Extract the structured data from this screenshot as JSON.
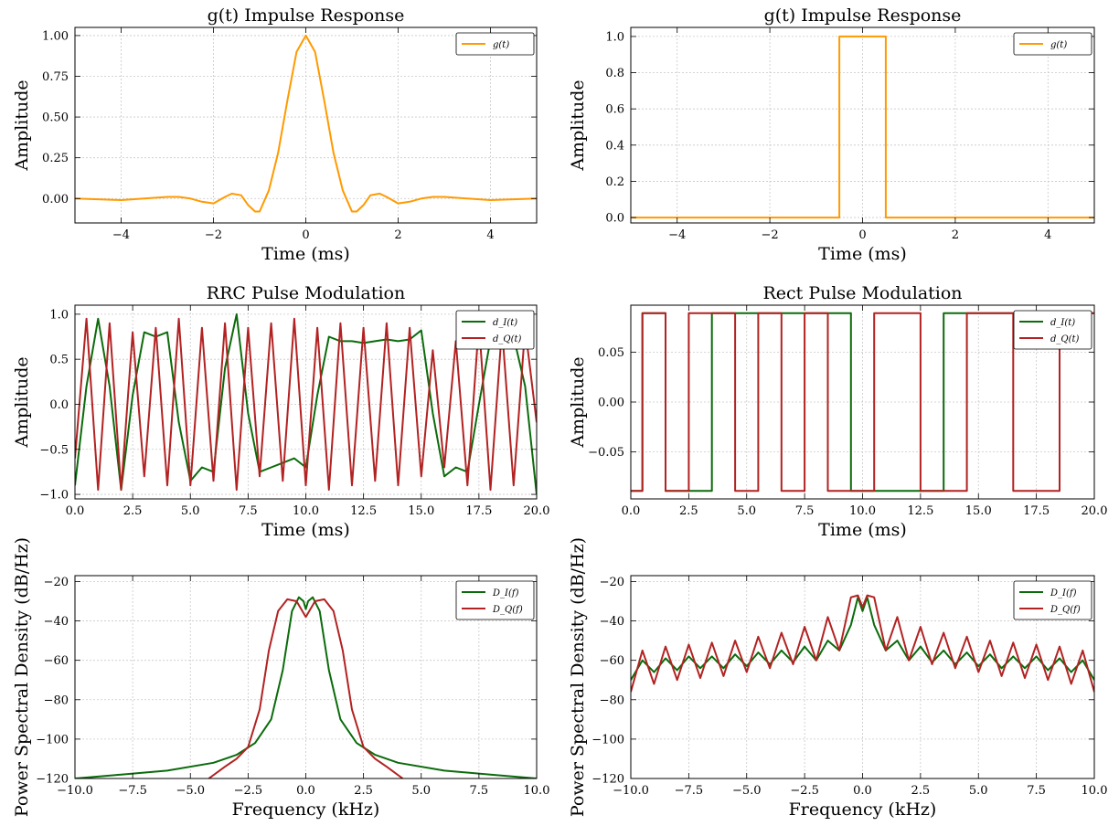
{
  "colors": {
    "orange": "#ff9a00",
    "green": "#0b6b0b",
    "red": "#b22222"
  },
  "chart_data": [
    {
      "type": "line",
      "title": "g(t) Impulse Response",
      "xlabel": "Time (ms)",
      "ylabel": "Amplitude",
      "xlim": [
        -5,
        5
      ],
      "ylim": [
        -0.15,
        1.05
      ],
      "xticks": [
        -4,
        -2,
        0,
        2,
        4
      ],
      "xticklabels": [
        "−4",
        "−2",
        "0",
        "2",
        "4"
      ],
      "yticks": [
        0,
        0.25,
        0.5,
        0.75,
        1.0
      ],
      "yticklabels": [
        "0.00",
        "0.25",
        "0.50",
        "0.75",
        "1.00"
      ],
      "grid": true,
      "legend": "top-right",
      "series": [
        {
          "name": "g(t)",
          "color": "#ff9a00",
          "x": [
            -5,
            -4.5,
            -4,
            -3.5,
            -3,
            -2.75,
            -2.5,
            -2.25,
            -2,
            -1.75,
            -1.6,
            -1.4,
            -1.25,
            -1.1,
            -1,
            -0.8,
            -0.6,
            -0.4,
            -0.2,
            0,
            0.2,
            0.4,
            0.6,
            0.8,
            1,
            1.1,
            1.25,
            1.4,
            1.6,
            1.75,
            2,
            2.25,
            2.5,
            2.75,
            3,
            3.5,
            4,
            4.5,
            5
          ],
          "y": [
            0.0,
            -0.005,
            -0.01,
            0.0,
            0.01,
            0.01,
            0.0,
            -0.02,
            -0.03,
            0.01,
            0.03,
            0.02,
            -0.04,
            -0.08,
            -0.08,
            0.05,
            0.28,
            0.6,
            0.9,
            1.0,
            0.9,
            0.6,
            0.28,
            0.05,
            -0.08,
            -0.08,
            -0.04,
            0.02,
            0.03,
            0.01,
            -0.03,
            -0.02,
            0.0,
            0.01,
            0.01,
            0.0,
            -0.01,
            -0.005,
            0.0
          ]
        }
      ]
    },
    {
      "type": "line",
      "title": "g(t) Impulse Response",
      "xlabel": "Time (ms)",
      "ylabel": "Amplitude",
      "xlim": [
        -5,
        5
      ],
      "ylim": [
        -0.03,
        1.05
      ],
      "xticks": [
        -4,
        -2,
        0,
        2,
        4
      ],
      "xticklabels": [
        "−4",
        "−2",
        "0",
        "2",
        "4"
      ],
      "yticks": [
        0,
        0.2,
        0.4,
        0.6,
        0.8,
        1.0
      ],
      "yticklabels": [
        "0.0",
        "0.2",
        "0.4",
        "0.6",
        "0.8",
        "1.0"
      ],
      "grid": true,
      "legend": "top-right",
      "series": [
        {
          "name": "g(t)",
          "color": "#ff9a00",
          "x": [
            -5,
            -0.5,
            -0.5,
            0.5,
            0.5,
            5
          ],
          "y": [
            0,
            0,
            1,
            1,
            0,
            0
          ]
        }
      ]
    },
    {
      "type": "line",
      "title": "RRC Pulse Modulation",
      "xlabel": "Time (ms)",
      "ylabel": "Amplitude",
      "xlim": [
        0,
        20
      ],
      "ylim": [
        -1.05,
        1.1
      ],
      "xticks": [
        0,
        2.5,
        5,
        7.5,
        10,
        12.5,
        15,
        17.5,
        20
      ],
      "xticklabels": [
        "0.0",
        "2.5",
        "5.0",
        "7.5",
        "10.0",
        "12.5",
        "15.0",
        "17.5",
        "20.0"
      ],
      "yticks": [
        -1,
        -0.5,
        0,
        0.5,
        1
      ],
      "yticklabels": [
        "−1.0",
        "−0.5",
        "0.0",
        "0.5",
        "1.0"
      ],
      "grid": true,
      "legend": "top-right",
      "series": [
        {
          "name": "d_I(t)",
          "color": "#0b6b0b",
          "x": [
            0,
            0.5,
            1,
            1.5,
            2,
            2.5,
            3,
            3.5,
            4,
            4.5,
            5,
            5.5,
            6,
            6.5,
            7,
            7.5,
            8,
            8.5,
            9,
            9.5,
            10,
            10.5,
            11,
            11.5,
            12,
            12.5,
            13,
            13.5,
            14,
            14.5,
            15,
            15.5,
            16,
            16.5,
            17,
            17.5,
            18,
            18.5,
            19,
            19.5,
            20
          ],
          "y": [
            -0.9,
            0.2,
            0.95,
            0.2,
            -0.95,
            0.1,
            0.8,
            0.75,
            0.8,
            -0.2,
            -0.85,
            -0.7,
            -0.75,
            0.4,
            1.0,
            -0.1,
            -0.75,
            -0.7,
            -0.65,
            -0.6,
            -0.7,
            0.1,
            0.75,
            0.7,
            0.7,
            0.68,
            0.7,
            0.72,
            0.7,
            0.72,
            0.82,
            -0.1,
            -0.8,
            -0.7,
            -0.75,
            0.0,
            0.72,
            0.7,
            0.75,
            0.2,
            -1.0
          ]
        },
        {
          "name": "d_Q(t)",
          "color": "#b22222",
          "x": [
            0,
            0.5,
            1,
            1.5,
            2,
            2.5,
            3,
            3.5,
            4,
            4.5,
            5,
            5.5,
            6,
            6.5,
            7,
            7.5,
            8,
            8.5,
            9,
            9.5,
            10,
            10.5,
            11,
            11.5,
            12,
            12.5,
            13,
            13.5,
            14,
            14.5,
            15,
            15.5,
            16,
            16.5,
            17,
            17.5,
            18,
            18.5,
            19,
            19.5,
            20
          ],
          "y": [
            -0.6,
            0.95,
            -0.95,
            0.9,
            -0.95,
            0.8,
            -0.8,
            0.85,
            -0.9,
            0.95,
            -0.9,
            0.85,
            -0.85,
            0.9,
            -0.95,
            0.85,
            -0.8,
            0.9,
            -0.85,
            0.95,
            -0.9,
            0.85,
            -0.95,
            0.9,
            -0.9,
            0.85,
            -0.85,
            0.9,
            -0.9,
            0.85,
            -0.8,
            0.6,
            -0.7,
            0.7,
            -0.9,
            0.9,
            -0.95,
            0.85,
            -0.9,
            0.85,
            -0.2
          ]
        }
      ]
    },
    {
      "type": "line",
      "title": "Rect Pulse Modulation",
      "xlabel": "Time (ms)",
      "ylabel": "Amplitude",
      "xlim": [
        0,
        20
      ],
      "ylim": [
        -0.097,
        0.097
      ],
      "xticks": [
        0,
        2.5,
        5,
        7.5,
        10,
        12.5,
        15,
        17.5,
        20
      ],
      "xticklabels": [
        "0.0",
        "2.5",
        "5.0",
        "7.5",
        "10.0",
        "12.5",
        "15.0",
        "17.5",
        "20.0"
      ],
      "yticks": [
        -0.05,
        0,
        0.05
      ],
      "yticklabels": [
        "−0.05",
        "0.00",
        "0.05"
      ],
      "grid": true,
      "legend": "top-right",
      "series": [
        {
          "name": "d_I(t)",
          "color": "#0b6b0b",
          "x": [
            0,
            0.5,
            0.5,
            1.5,
            1.5,
            3.5,
            3.5,
            9.5,
            9.5,
            13.5,
            13.5,
            20
          ],
          "y": [
            -0.089,
            -0.089,
            0.089,
            0.089,
            -0.089,
            -0.089,
            0.089,
            0.089,
            -0.089,
            -0.089,
            0.089,
            0.089
          ]
        },
        {
          "name": "d_Q(t)",
          "color": "#b22222",
          "x": [
            0,
            0.5,
            0.5,
            1.5,
            1.5,
            2.5,
            2.5,
            4.5,
            4.5,
            5.5,
            5.5,
            6.5,
            6.5,
            7.5,
            7.5,
            8.5,
            8.5,
            10.5,
            10.5,
            12.5,
            12.5,
            14.5,
            14.5,
            16.5,
            16.5,
            18.5,
            18.5,
            20
          ],
          "y": [
            -0.089,
            -0.089,
            0.089,
            0.089,
            -0.089,
            -0.089,
            0.089,
            0.089,
            -0.089,
            -0.089,
            0.089,
            0.089,
            -0.089,
            -0.089,
            0.089,
            0.089,
            -0.089,
            -0.089,
            0.089,
            0.089,
            -0.089,
            -0.089,
            0.089,
            0.089,
            -0.089,
            -0.089,
            0.089,
            0.089
          ]
        }
      ]
    },
    {
      "type": "line",
      "title": "",
      "xlabel": "Frequency (kHz)",
      "ylabel": "Power Spectral Density (dB/Hz)",
      "xlim": [
        -10,
        10
      ],
      "ylim": [
        -120,
        -17
      ],
      "xticks": [
        -10,
        -7.5,
        -5,
        -2.5,
        0,
        2.5,
        5,
        7.5,
        10
      ],
      "xticklabels": [
        "−10.0",
        "−7.5",
        "−5.0",
        "−2.5",
        "0.0",
        "2.5",
        "5.0",
        "7.5",
        "10.0"
      ],
      "yticks": [
        -120,
        -100,
        -80,
        -60,
        -40,
        -20
      ],
      "yticklabels": [
        "−120",
        "−100",
        "−80",
        "−60",
        "−40",
        "−20"
      ],
      "grid": true,
      "legend": "top-right",
      "series": [
        {
          "name": "D_I(f)",
          "color": "#0b6b0b",
          "x": [
            -10,
            -8,
            -6,
            -4,
            -3,
            -2.2,
            -1.5,
            -1,
            -0.6,
            -0.3,
            -0.1,
            0,
            0.1,
            0.3,
            0.6,
            1,
            1.5,
            2.2,
            3,
            4,
            6,
            8,
            10
          ],
          "y": [
            -120,
            -118,
            -116,
            -112,
            -108,
            -102,
            -90,
            -65,
            -35,
            -28,
            -30,
            -34,
            -30,
            -28,
            -35,
            -65,
            -90,
            -102,
            -108,
            -112,
            -116,
            -118,
            -120
          ]
        },
        {
          "name": "D_Q(f)",
          "color": "#b22222",
          "x": [
            -4.2,
            -3.5,
            -3,
            -2.5,
            -2,
            -1.6,
            -1.2,
            -0.8,
            -0.4,
            -0.15,
            0,
            0.15,
            0.4,
            0.8,
            1.2,
            1.6,
            2,
            2.5,
            3,
            3.5,
            4.2
          ],
          "y": [
            -120,
            -114,
            -110,
            -104,
            -85,
            -55,
            -35,
            -29,
            -30,
            -35,
            -38,
            -35,
            -30,
            -29,
            -35,
            -55,
            -85,
            -104,
            -110,
            -114,
            -120
          ]
        }
      ]
    },
    {
      "type": "line",
      "title": "",
      "xlabel": "Frequency (kHz)",
      "ylabel": "Power Spectral Density (dB/Hz)",
      "xlim": [
        -10,
        10
      ],
      "ylim": [
        -120,
        -17
      ],
      "xticks": [
        -10,
        -7.5,
        -5,
        -2.5,
        0,
        2.5,
        5,
        7.5,
        10
      ],
      "xticklabels": [
        "−10.0",
        "−7.5",
        "−5.0",
        "−2.5",
        "0.0",
        "2.5",
        "5.0",
        "7.5",
        "10.0"
      ],
      "yticks": [
        -120,
        -100,
        -80,
        -60,
        -40,
        -20
      ],
      "yticklabels": [
        "−120",
        "−100",
        "−80",
        "−60",
        "−40",
        "−20"
      ],
      "grid": true,
      "legend": "top-right",
      "series": [
        {
          "name": "D_I(f)",
          "color": "#0b6b0b",
          "x": [
            -10,
            -9.5,
            -9,
            -8.5,
            -8,
            -7.5,
            -7,
            -6.5,
            -6,
            -5.5,
            -5,
            -4.5,
            -4,
            -3.5,
            -3,
            -2.5,
            -2,
            -1.5,
            -1,
            -0.5,
            -0.2,
            0,
            0.2,
            0.5,
            1,
            1.5,
            2,
            2.5,
            3,
            3.5,
            4,
            4.5,
            5,
            5.5,
            6,
            6.5,
            7,
            7.5,
            8,
            8.5,
            9,
            9.5,
            10
          ],
          "y": [
            -70,
            -60,
            -66,
            -59,
            -65,
            -58,
            -64,
            -58,
            -64,
            -57,
            -63,
            -56,
            -62,
            -55,
            -61,
            -53,
            -60,
            -50,
            -55,
            -42,
            -28,
            -35,
            -28,
            -42,
            -55,
            -50,
            -60,
            -53,
            -61,
            -55,
            -62,
            -56,
            -63,
            -57,
            -64,
            -58,
            -64,
            -58,
            -65,
            -59,
            -66,
            -60,
            -70
          ]
        },
        {
          "name": "D_Q(f)",
          "color": "#b22222",
          "x": [
            -10,
            -9.5,
            -9,
            -8.5,
            -8,
            -7.5,
            -7,
            -6.5,
            -6,
            -5.5,
            -5,
            -4.5,
            -4,
            -3.5,
            -3,
            -2.5,
            -2,
            -1.5,
            -1,
            -0.5,
            -0.2,
            0,
            0.2,
            0.5,
            1,
            1.5,
            2,
            2.5,
            3,
            3.5,
            4,
            4.5,
            5,
            5.5,
            6,
            6.5,
            7,
            7.5,
            8,
            8.5,
            9,
            9.5,
            10
          ],
          "y": [
            -76,
            -55,
            -72,
            -53,
            -70,
            -52,
            -69,
            -51,
            -68,
            -50,
            -66,
            -48,
            -64,
            -46,
            -62,
            -43,
            -60,
            -38,
            -55,
            -28,
            -27,
            -33,
            -27,
            -28,
            -55,
            -38,
            -60,
            -43,
            -62,
            -46,
            -64,
            -48,
            -66,
            -50,
            -68,
            -51,
            -69,
            -52,
            -70,
            -53,
            -72,
            -55,
            -76
          ]
        }
      ]
    }
  ]
}
